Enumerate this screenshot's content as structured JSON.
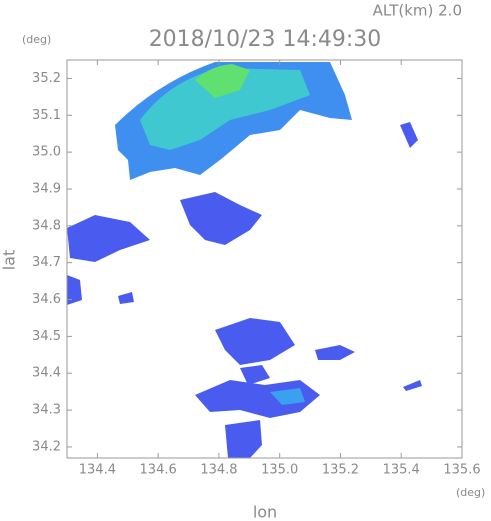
{
  "chart_data": {
    "type": "heatmap",
    "subtitle": "ALT(km) 2.0",
    "title": "2018/10/23 14:49:30",
    "y_unit": "(deg)",
    "x_unit": "(deg)",
    "x_label": "lon",
    "y_label": "lat",
    "xlim": [
      134.3,
      135.6
    ],
    "xticks": [
      134.4,
      134.6,
      134.8,
      {
        "value": 135,
        "label": "135.0"
      },
      135.2,
      135.4,
      135.6
    ],
    "ylim": [
      34.17,
      35.25
    ],
    "yticks": [
      34.2,
      34.3,
      34.4,
      34.5,
      34.6,
      34.7,
      34.8,
      34.9,
      {
        "value": 35,
        "label": "35.0"
      },
      35.1,
      35.2
    ]
  }
}
